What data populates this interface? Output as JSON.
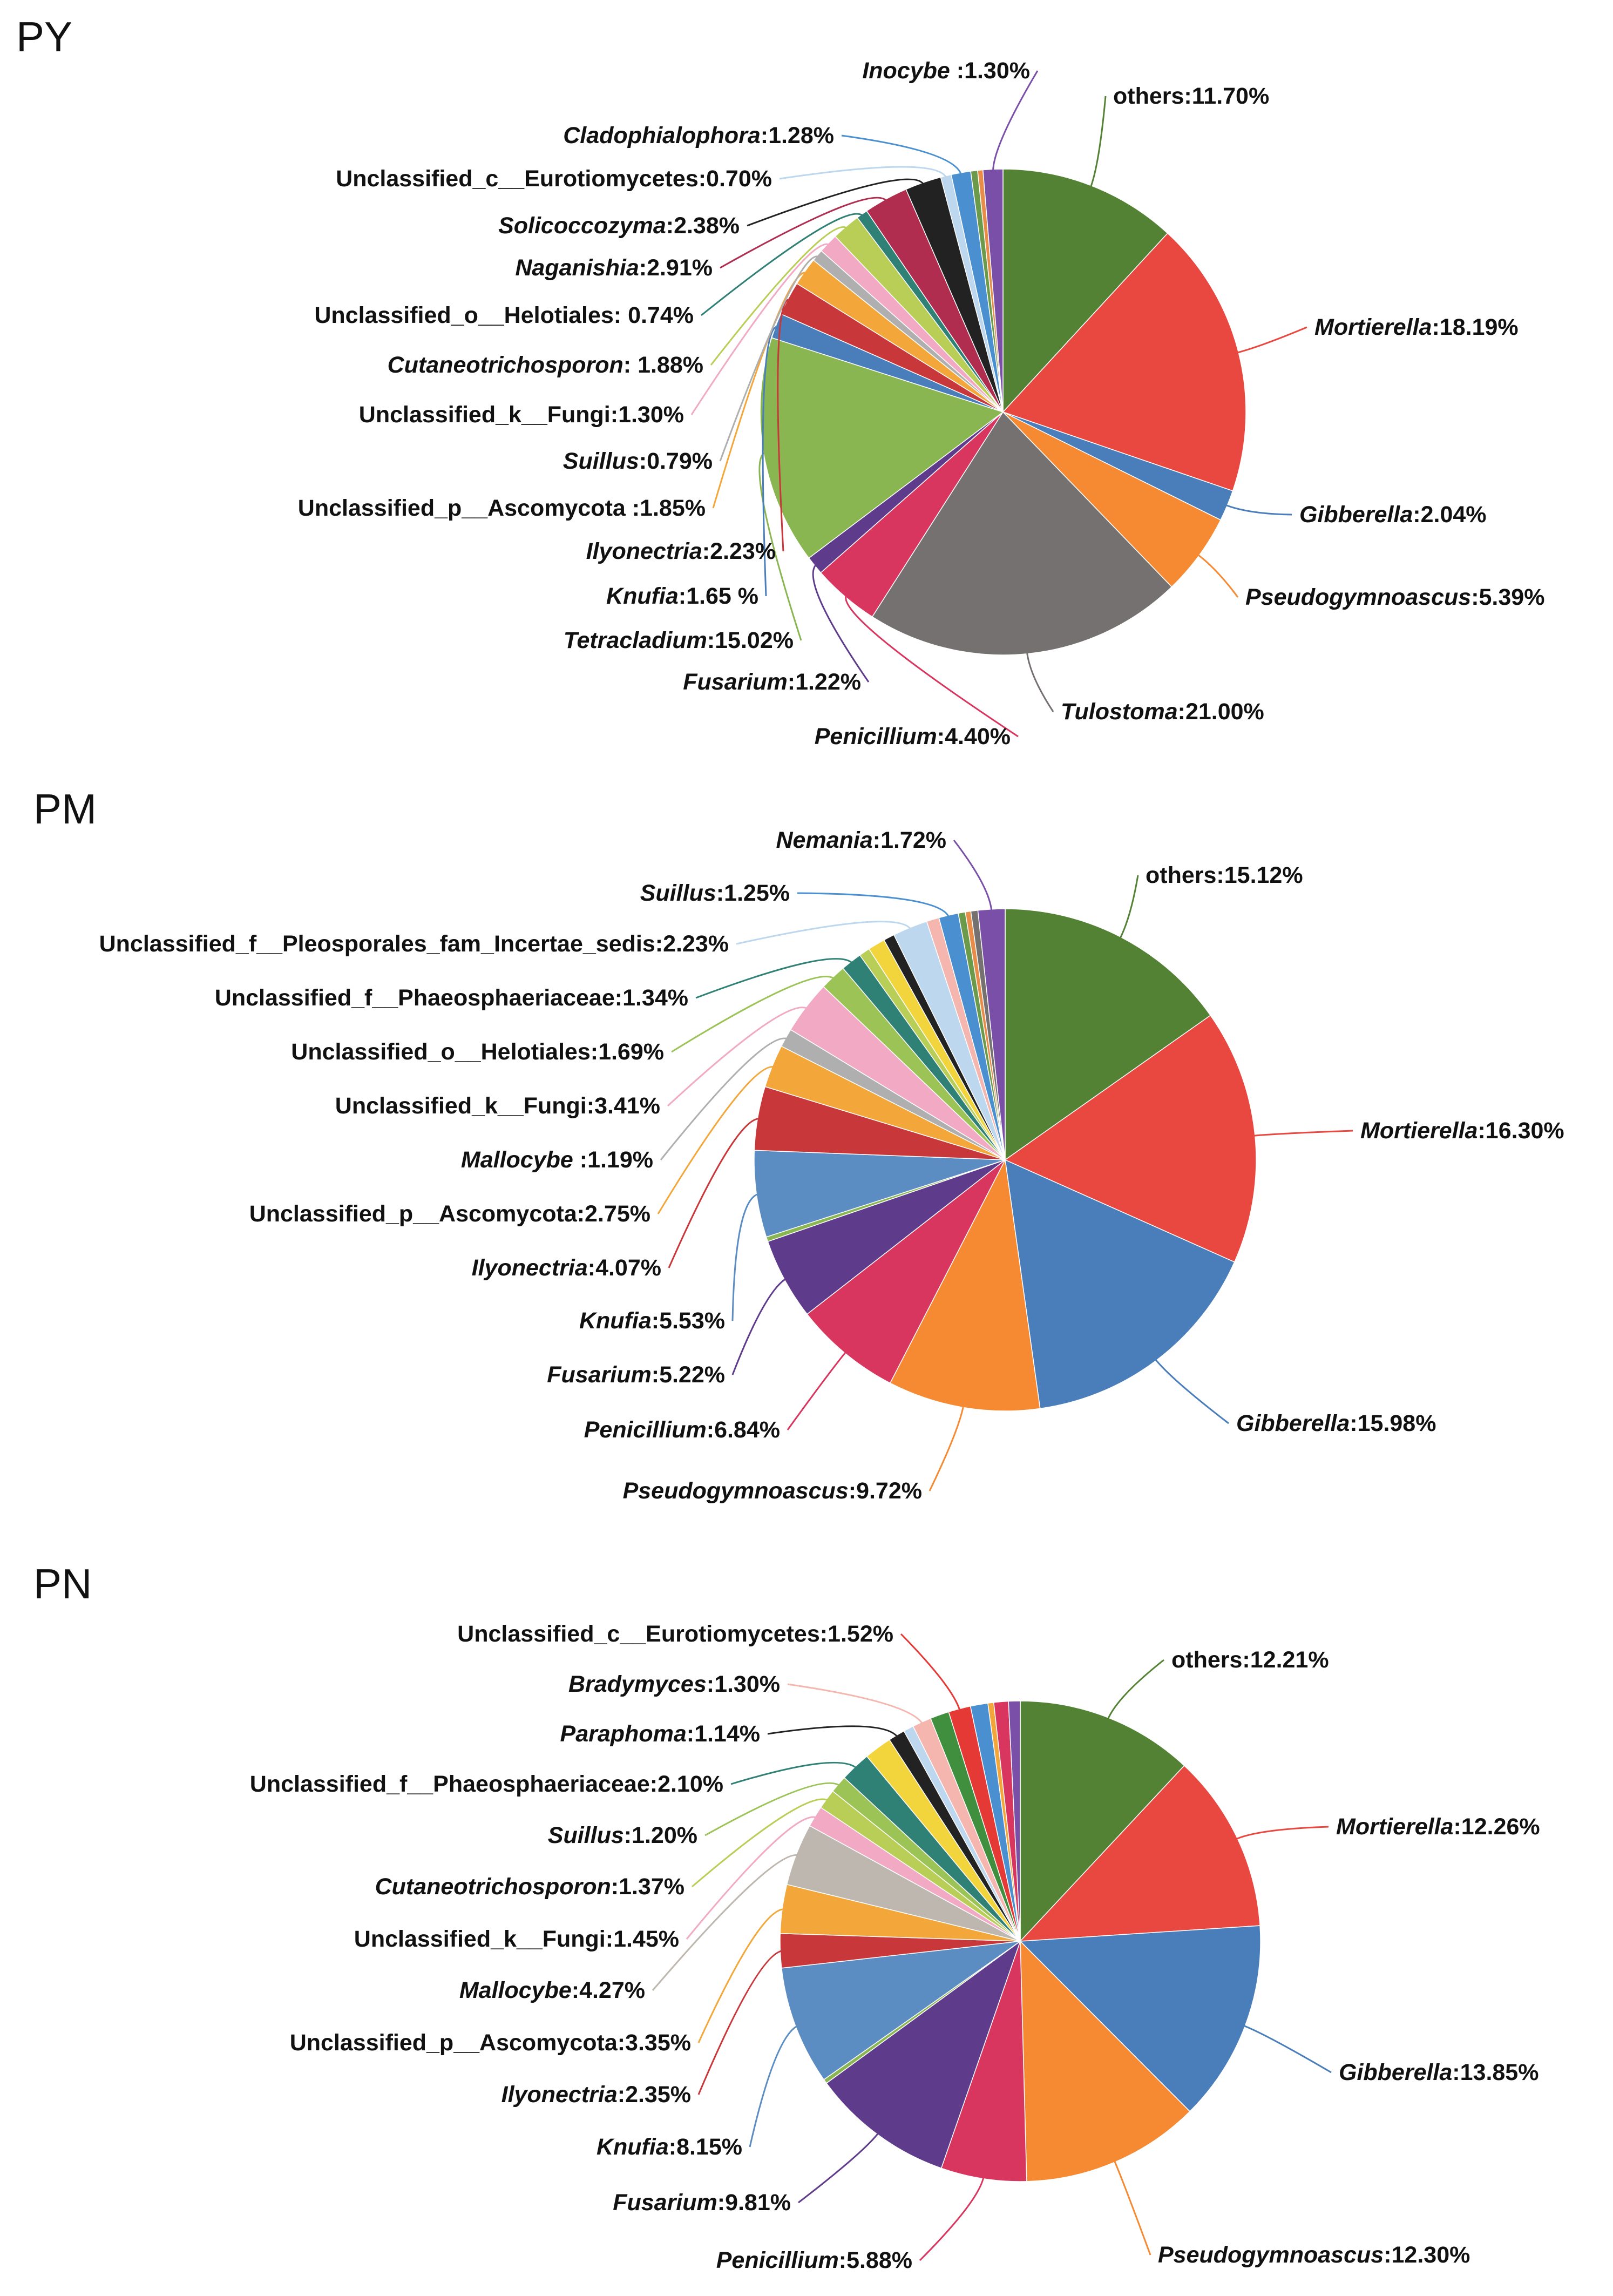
{
  "chart_data": [
    {
      "type": "pie",
      "title": "PY",
      "slices": [
        {
          "label": "others",
          "value": 11.7,
          "text": "others:11.70%",
          "italic": false,
          "color": "#548235"
        },
        {
          "label": "Mortierella",
          "value": 18.19,
          "text": "Mortierella:18.19%",
          "italic": true,
          "color": "#E8483F"
        },
        {
          "label": "Gibberella",
          "value": 2.04,
          "text": "Gibberella:2.04%",
          "italic": true,
          "color": "#4A7EBB"
        },
        {
          "label": "Pseudogymnoascus",
          "value": 5.39,
          "text": "Pseudogymnoascus:5.39%",
          "italic": true,
          "color": "#F58A33"
        },
        {
          "label": "Tulostoma",
          "value": 21.0,
          "text": "Tulostoma:21.00%",
          "italic": true,
          "color": "#767171"
        },
        {
          "label": "Penicillium",
          "value": 4.4,
          "text": "Penicillium:4.40%",
          "italic": true,
          "color": "#D8365F"
        },
        {
          "label": "Fusarium",
          "value": 1.22,
          "text": "Fusarium:1.22%",
          "italic": true,
          "color": "#5F3B8C"
        },
        {
          "label": "Tetracladium",
          "value": 15.02,
          "text": "Tetracladium:15.02%",
          "italic": true,
          "color": "#8AB651"
        },
        {
          "label": "Knufia",
          "value": 1.65,
          "text": "Knufia:1.65 %",
          "italic": true,
          "color": "#4A7EBB"
        },
        {
          "label": "Ilyonectria",
          "value": 2.23,
          "text": "Ilyonectria:2.23%",
          "italic": true,
          "color": "#C8373A"
        },
        {
          "label": "Unclassified_p__Ascomycota",
          "value": 1.85,
          "text": "Unclassified_p__Ascomycota :1.85%",
          "italic": false,
          "color": "#F3A73A"
        },
        {
          "label": "Suillus",
          "value": 0.79,
          "text": "Suillus:0.79%",
          "italic": true,
          "color": "#AFAFAF"
        },
        {
          "label": "Unclassified_k__Fungi",
          "value": 1.3,
          "text": "Unclassified_k__Fungi:1.30%",
          "italic": false,
          "color": "#F1A9C4"
        },
        {
          "label": "Cutaneotrichosporon",
          "value": 1.88,
          "text": "Cutaneotrichosporon: 1.88%",
          "italic": true,
          "color": "#B9CE56"
        },
        {
          "label": "Unclassified_o__Helotiales",
          "value": 0.74,
          "text": "Unclassified_o__Helotiales: 0.74%",
          "italic": false,
          "color": "#2F8075"
        },
        {
          "label": "Naganishia",
          "value": 2.91,
          "text": "Naganishia:2.91%",
          "italic": true,
          "color": "#B02D50"
        },
        {
          "label": "Solicoccozyma",
          "value": 2.38,
          "text": "Solicoccozyma:2.38%",
          "italic": true,
          "color": "#222222"
        },
        {
          "label": "Unclassified_c__Eurotiomycetes",
          "value": 0.7,
          "text": "Unclassified_c__Eurotiomycetes:0.70%",
          "italic": false,
          "color": "#BDD7EE"
        },
        {
          "label": "Cladophialophora",
          "value": 1.28,
          "text": "Cladophialophora:1.28%",
          "italic": true,
          "color": "#4A90D0"
        },
        {
          "label": "unlabeled-1",
          "value": 0.45,
          "text": "",
          "italic": false,
          "color": "#6B9B4A"
        },
        {
          "label": "unlabeled-2",
          "value": 0.35,
          "text": "",
          "italic": false,
          "color": "#E88C4A"
        },
        {
          "label": "Inocybe",
          "value": 1.3,
          "text": "Inocybe :1.30%",
          "italic": true,
          "color": "#7A4FA8"
        }
      ]
    },
    {
      "type": "pie",
      "title": "PM",
      "slices": [
        {
          "label": "others",
          "value": 15.12,
          "text": "others:15.12%",
          "italic": false,
          "color": "#548235"
        },
        {
          "label": "Mortierella",
          "value": 16.3,
          "text": "Mortierella:16.30%",
          "italic": true,
          "color": "#E8483F"
        },
        {
          "label": "Gibberella",
          "value": 15.98,
          "text": "Gibberella:15.98%",
          "italic": true,
          "color": "#4A7EBB"
        },
        {
          "label": "Pseudogymnoascus",
          "value": 9.72,
          "text": "Pseudogymnoascus:9.72%",
          "italic": true,
          "color": "#F58A33"
        },
        {
          "label": "Penicillium",
          "value": 6.84,
          "text": "Penicillium:6.84%",
          "italic": true,
          "color": "#D8365F"
        },
        {
          "label": "Fusarium",
          "value": 5.22,
          "text": "Fusarium:5.22%",
          "italic": true,
          "color": "#5F3B8C"
        },
        {
          "label": "unlabeled-1",
          "value": 0.3,
          "text": "",
          "italic": false,
          "color": "#8AB651"
        },
        {
          "label": "Knufia",
          "value": 5.53,
          "text": "Knufia:5.53%",
          "italic": true,
          "color": "#5B8CC2"
        },
        {
          "label": "Ilyonectria",
          "value": 4.07,
          "text": "Ilyonectria:4.07%",
          "italic": true,
          "color": "#C8373A"
        },
        {
          "label": "Unclassified_p__Ascomycota",
          "value": 2.75,
          "text": "Unclassified_p__Ascomycota:2.75%",
          "italic": false,
          "color": "#F3A73A"
        },
        {
          "label": "Mallocybe",
          "value": 1.19,
          "text": "Mallocybe :1.19%",
          "italic": true,
          "color": "#AFAFAF"
        },
        {
          "label": "Unclassified_k__Fungi",
          "value": 3.41,
          "text": "Unclassified_k__Fungi:3.41%",
          "italic": false,
          "color": "#F1A9C4"
        },
        {
          "label": "Unclassified_o__Helotiales",
          "value": 1.69,
          "text": "Unclassified_o__Helotiales:1.69%",
          "italic": false,
          "color": "#9CC356"
        },
        {
          "label": "Unclassified_f__Phaeosphaeriaceae",
          "value": 1.34,
          "text": "Unclassified_f__Phaeosphaeriaceae:1.34%",
          "italic": false,
          "color": "#2F8075"
        },
        {
          "label": "unlabeled-2",
          "value": 0.7,
          "text": "",
          "italic": false,
          "color": "#B9CE56"
        },
        {
          "label": "unlabeled-3",
          "value": 1.1,
          "text": "",
          "italic": false,
          "color": "#F2D53C"
        },
        {
          "label": "unlabeled-4",
          "value": 0.7,
          "text": "",
          "italic": false,
          "color": "#222222"
        },
        {
          "label": "Unclassified_f__Pleosporales_fam_Incertae_sedis",
          "value": 2.23,
          "text": "Unclassified_f__Pleosporales_fam_Incertae_sedis:2.23%",
          "italic": false,
          "color": "#BDD7EE"
        },
        {
          "label": "unlabeled-5",
          "value": 0.8,
          "text": "",
          "italic": false,
          "color": "#F4B6AE"
        },
        {
          "label": "Suillus",
          "value": 1.25,
          "text": "Suillus:1.25%",
          "italic": true,
          "color": "#4A90D0"
        },
        {
          "label": "unlabeled-6",
          "value": 0.45,
          "text": "",
          "italic": false,
          "color": "#6B9B4A"
        },
        {
          "label": "unlabeled-7",
          "value": 0.35,
          "text": "",
          "italic": false,
          "color": "#E88C4A"
        },
        {
          "label": "unlabeled-8",
          "value": 0.45,
          "text": "",
          "italic": false,
          "color": "#767171"
        },
        {
          "label": "Nemania",
          "value": 1.72,
          "text": "Nemania:1.72%",
          "italic": true,
          "color": "#7A4FA8"
        }
      ]
    },
    {
      "type": "pie",
      "title": "PN",
      "slices": [
        {
          "label": "others",
          "value": 12.21,
          "text": "others:12.21%",
          "italic": false,
          "color": "#548235"
        },
        {
          "label": "Mortierella",
          "value": 12.26,
          "text": "Mortierella:12.26%",
          "italic": true,
          "color": "#E8483F"
        },
        {
          "label": "Gibberella",
          "value": 13.85,
          "text": "Gibberella:13.85%",
          "italic": true,
          "color": "#4A7EBB"
        },
        {
          "label": "Pseudogymnoascus",
          "value": 12.3,
          "text": "Pseudogymnoascus:12.30%",
          "italic": true,
          "color": "#F58A33"
        },
        {
          "label": "Penicillium",
          "value": 5.88,
          "text": "Penicillium:5.88%",
          "italic": true,
          "color": "#D8365F"
        },
        {
          "label": "Fusarium",
          "value": 9.81,
          "text": "Fusarium:9.81%",
          "italic": true,
          "color": "#5F3B8C"
        },
        {
          "label": "unlabeled-1",
          "value": 0.3,
          "text": "",
          "italic": false,
          "color": "#8AB651"
        },
        {
          "label": "Knufia",
          "value": 8.15,
          "text": "Knufia:8.15%",
          "italic": true,
          "color": "#5B8CC2"
        },
        {
          "label": "Ilyonectria",
          "value": 2.35,
          "text": "Ilyonectria:2.35%",
          "italic": true,
          "color": "#C8373A"
        },
        {
          "label": "Unclassified_p__Ascomycota",
          "value": 3.35,
          "text": "Unclassified_p__Ascomycota:3.35%",
          "italic": false,
          "color": "#F3A73A"
        },
        {
          "label": "Mallocybe",
          "value": 4.27,
          "text": "Mallocybe:4.27%",
          "italic": true,
          "color": "#BDB7B0"
        },
        {
          "label": "Unclassified_k__Fungi",
          "value": 1.45,
          "text": "Unclassified_k__Fungi:1.45%",
          "italic": false,
          "color": "#F1A9C4"
        },
        {
          "label": "Cutaneotrichosporon",
          "value": 1.37,
          "text": "Cutaneotrichosporon:1.37%",
          "italic": true,
          "color": "#B9CE56"
        },
        {
          "label": "Suillus",
          "value": 1.2,
          "text": "Suillus:1.20%",
          "italic": true,
          "color": "#9CC356"
        },
        {
          "label": "Unclassified_f__Phaeosphaeriaceae",
          "value": 2.1,
          "text": "Unclassified_f__Phaeosphaeriaceae:2.10%",
          "italic": false,
          "color": "#2F8075"
        },
        {
          "label": "unlabeled-2",
          "value": 1.9,
          "text": "",
          "italic": false,
          "color": "#F2D53C"
        },
        {
          "label": "Paraphoma",
          "value": 1.14,
          "text": "Paraphoma:1.14%",
          "italic": true,
          "color": "#222222"
        },
        {
          "label": "unlabeled-3",
          "value": 0.7,
          "text": "",
          "italic": false,
          "color": "#BDD7EE"
        },
        {
          "label": "Bradymyces",
          "value": 1.3,
          "text": "Bradymyces:1.30%",
          "italic": true,
          "color": "#F4B6AE"
        },
        {
          "label": "unlabeled-4",
          "value": 1.3,
          "text": "",
          "italic": false,
          "color": "#3F8F3F"
        },
        {
          "label": "Unclassified_c__Eurotiomycetes",
          "value": 1.52,
          "text": "Unclassified_c__Eurotiomycetes:1.52%",
          "italic": false,
          "color": "#E53935"
        },
        {
          "label": "unlabeled-5",
          "value": 1.2,
          "text": "",
          "italic": false,
          "color": "#4A90D0"
        },
        {
          "label": "unlabeled-6",
          "value": 0.4,
          "text": "",
          "italic": false,
          "color": "#F3A73A"
        },
        {
          "label": "unlabeled-7",
          "value": 1.0,
          "text": "",
          "italic": false,
          "color": "#D8365F"
        },
        {
          "label": "unlabeled-8",
          "value": 0.8,
          "text": "",
          "italic": false,
          "color": "#7A4FA8"
        }
      ]
    }
  ]
}
